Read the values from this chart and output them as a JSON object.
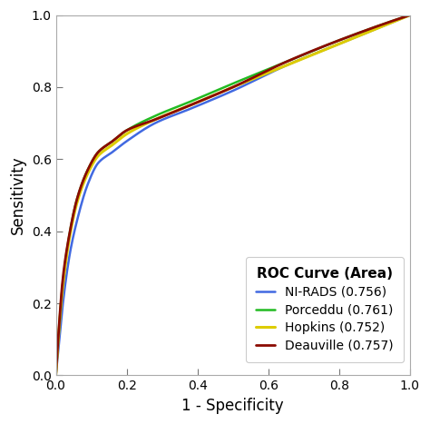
{
  "title": "",
  "xlabel": "1 - Specificity",
  "ylabel": "Sensitivity",
  "xlim": [
    0.0,
    1.0
  ],
  "ylim": [
    0.0,
    1.0
  ],
  "xticks": [
    0.0,
    0.2,
    0.4,
    0.6,
    0.8,
    1.0
  ],
  "yticks": [
    0.0,
    0.2,
    0.4,
    0.6,
    0.8,
    1.0
  ],
  "legend_title": "ROC Curve (Area)",
  "curves": [
    {
      "label": "NI-RADS (0.756)",
      "color": "#4169e1",
      "lw": 1.8,
      "fpr": [
        0.0,
        0.01,
        0.02,
        0.04,
        0.06,
        0.09,
        0.12,
        0.16,
        0.2,
        0.28,
        0.38,
        0.5,
        0.65,
        0.8,
        1.0
      ],
      "tpr": [
        0.0,
        0.1,
        0.2,
        0.34,
        0.43,
        0.53,
        0.59,
        0.62,
        0.65,
        0.7,
        0.74,
        0.79,
        0.86,
        0.92,
        1.0
      ]
    },
    {
      "label": "Porceddu (0.761)",
      "color": "#22bb22",
      "lw": 1.8,
      "fpr": [
        0.0,
        0.01,
        0.02,
        0.04,
        0.06,
        0.09,
        0.12,
        0.16,
        0.2,
        0.28,
        0.38,
        0.5,
        0.65,
        0.8,
        1.0
      ],
      "tpr": [
        0.0,
        0.14,
        0.26,
        0.4,
        0.49,
        0.57,
        0.62,
        0.65,
        0.68,
        0.72,
        0.76,
        0.81,
        0.87,
        0.93,
        1.0
      ]
    },
    {
      "label": "Hopkins (0.752)",
      "color": "#ddcc00",
      "lw": 2.2,
      "fpr": [
        0.0,
        0.01,
        0.02,
        0.04,
        0.06,
        0.09,
        0.12,
        0.16,
        0.2,
        0.28,
        0.38,
        0.5,
        0.65,
        0.8,
        1.0
      ],
      "tpr": [
        0.0,
        0.14,
        0.25,
        0.39,
        0.48,
        0.56,
        0.61,
        0.64,
        0.67,
        0.71,
        0.75,
        0.8,
        0.86,
        0.92,
        1.0
      ]
    },
    {
      "label": "Deauville (0.757)",
      "color": "#8b0a00",
      "lw": 2.0,
      "fpr": [
        0.0,
        0.01,
        0.02,
        0.04,
        0.06,
        0.09,
        0.12,
        0.16,
        0.2,
        0.28,
        0.38,
        0.5,
        0.65,
        0.8,
        1.0
      ],
      "tpr": [
        0.0,
        0.15,
        0.27,
        0.4,
        0.49,
        0.57,
        0.62,
        0.65,
        0.68,
        0.71,
        0.75,
        0.8,
        0.87,
        0.93,
        1.0
      ]
    }
  ],
  "background_color": "#ffffff",
  "tick_fontsize": 10,
  "label_fontsize": 12,
  "legend_fontsize": 10,
  "legend_title_fontsize": 11
}
